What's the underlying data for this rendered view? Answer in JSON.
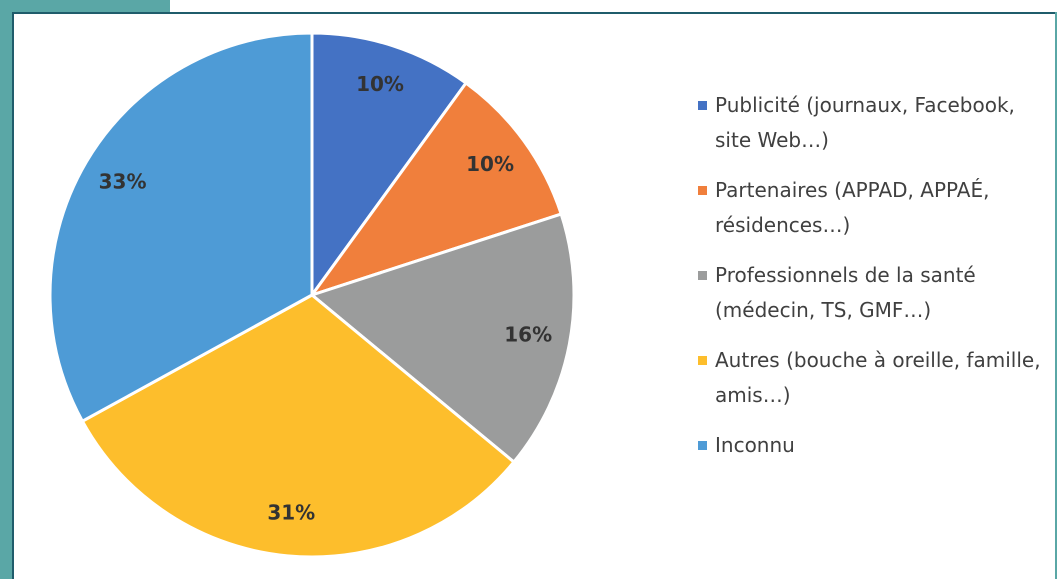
{
  "chart_data": {
    "type": "pie",
    "categories": [
      "Publicité (journaux, Facebook, site Web…)",
      "Partenaires (APPAD, APPAÉ, résidences…)",
      "Professionnels de la santé (médecin, TS, GMF…)",
      "Autres (bouche à oreille, famille, amis…)",
      "Inconnu"
    ],
    "values": [
      10,
      10,
      16,
      31,
      33
    ],
    "value_labels": [
      "10%",
      "10%",
      "16%",
      "31%",
      "33%"
    ],
    "colors": [
      "#4472c4",
      "#f07f3c",
      "#9b9c9c",
      "#fdbe2c",
      "#4e9bd6"
    ],
    "legend": "right"
  }
}
